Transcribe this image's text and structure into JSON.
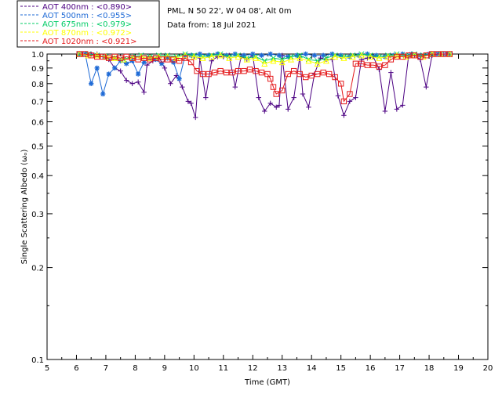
{
  "chart_data": {
    "type": "line",
    "site_title": "PML, N 50 22', W 04 08', Alt 0m",
    "date_text": "Data from: 18 Jul 2021",
    "xlabel": "Time (GMT)",
    "ylabel": "Single Scattering Albedo (ωₒ)",
    "xlim": [
      5,
      20
    ],
    "ylim": [
      0.1,
      1.0
    ],
    "yscale": "log",
    "x_ticks": [
      "5",
      "6",
      "7",
      "8",
      "9",
      "10",
      "11",
      "12",
      "13",
      "14",
      "15",
      "16",
      "17",
      "18",
      "19",
      "20"
    ],
    "y_ticks": [
      {
        "v": 0.1,
        "label": "0.1"
      },
      {
        "v": 0.2,
        "label": "0.2"
      },
      {
        "v": 0.3,
        "label": "0.3"
      },
      {
        "v": 0.4,
        "label": "0.4"
      },
      {
        "v": 0.5,
        "label": "0.5"
      },
      {
        "v": 0.6,
        "label": "0.6"
      },
      {
        "v": 0.7,
        "label": "0.7"
      },
      {
        "v": 0.8,
        "label": "0.8"
      },
      {
        "v": 0.9,
        "label": "0.9"
      },
      {
        "v": 1.0,
        "label": "1.0"
      }
    ],
    "legend_position": "top-left",
    "series": [
      {
        "name": "AOT  400nm : <0.890>",
        "color": "#4b0082",
        "marker": "plus",
        "x": [
          6.1,
          6.3,
          6.5,
          6.7,
          6.9,
          7.1,
          7.3,
          7.5,
          7.7,
          7.9,
          8.1,
          8.3,
          8.4,
          8.6,
          8.8,
          9.0,
          9.2,
          9.4,
          9.6,
          9.8,
          9.9,
          10.05,
          10.2,
          10.4,
          10.6,
          10.8,
          11.0,
          11.2,
          11.4,
          11.6,
          11.8,
          12.0,
          12.2,
          12.4,
          12.6,
          12.8,
          12.9,
          13.0,
          13.2,
          13.4,
          13.6,
          13.7,
          13.9,
          14.1,
          14.3,
          14.5,
          14.7,
          14.9,
          15.1,
          15.3,
          15.5,
          15.7,
          15.9,
          16.1,
          16.3,
          16.5,
          16.7,
          16.9,
          17.1,
          17.3,
          17.5,
          17.7,
          17.9,
          18.1,
          18.3,
          18.5,
          18.7
        ],
        "y": [
          1.0,
          1.0,
          1.0,
          1.0,
          0.98,
          0.96,
          0.9,
          0.88,
          0.82,
          0.8,
          0.81,
          0.75,
          0.92,
          0.95,
          0.98,
          0.9,
          0.8,
          0.85,
          0.78,
          0.7,
          0.69,
          0.62,
          0.97,
          0.72,
          0.95,
          0.98,
          0.98,
          0.99,
          0.78,
          0.98,
          0.96,
          0.99,
          0.72,
          0.65,
          0.69,
          0.67,
          0.68,
          0.99,
          0.66,
          0.72,
          0.98,
          0.74,
          0.67,
          0.86,
          0.97,
          0.96,
          0.96,
          0.73,
          0.63,
          0.7,
          0.72,
          0.96,
          0.97,
          0.98,
          0.89,
          0.65,
          0.87,
          0.66,
          0.68,
          0.98,
          0.99,
          0.96,
          0.78,
          0.99,
          1.0,
          1.0,
          1.0
        ]
      },
      {
        "name": "AOT  500nm : <0.955>",
        "color": "#1e6ad6",
        "marker": "asterisk",
        "x": [
          6.1,
          6.3,
          6.5,
          6.7,
          6.9,
          7.1,
          7.3,
          7.5,
          7.7,
          7.9,
          8.1,
          8.3,
          8.5,
          8.7,
          8.9,
          9.1,
          9.3,
          9.5,
          9.7,
          9.9,
          10.2,
          10.5,
          10.8,
          11.1,
          11.4,
          11.7,
          12.0,
          12.3,
          12.6,
          12.9,
          13.2,
          13.5,
          13.8,
          14.1,
          14.4,
          14.7,
          15.0,
          15.3,
          15.6,
          15.9,
          16.2,
          16.5,
          16.8,
          17.1,
          17.4,
          17.7,
          18.0,
          18.3,
          18.6
        ],
        "y": [
          1.0,
          1.0,
          0.8,
          0.9,
          0.74,
          0.86,
          0.9,
          0.95,
          0.93,
          0.95,
          0.86,
          0.94,
          0.97,
          0.96,
          0.93,
          0.97,
          0.94,
          0.83,
          0.99,
          0.99,
          1.0,
          0.99,
          1.0,
          0.99,
          1.0,
          0.99,
          1.0,
          0.99,
          1.0,
          0.99,
          0.98,
          0.99,
          1.0,
          0.99,
          0.99,
          1.0,
          0.99,
          0.98,
          0.99,
          1.0,
          0.99,
          0.98,
          0.99,
          1.0,
          1.0,
          0.99,
          1.0,
          1.0,
          1.0
        ]
      },
      {
        "name": "AOT  675nm : <0.979>",
        "color": "#00cc66",
        "marker": "x",
        "x": [
          6.1,
          6.4,
          6.7,
          7.0,
          7.3,
          7.6,
          7.9,
          8.2,
          8.5,
          8.8,
          9.1,
          9.4,
          9.7,
          10.0,
          10.3,
          10.6,
          10.9,
          11.2,
          11.5,
          11.8,
          12.1,
          12.4,
          12.7,
          13.0,
          13.3,
          13.6,
          13.9,
          14.2,
          14.5,
          14.8,
          15.1,
          15.4,
          15.7,
          16.0,
          16.3,
          16.6,
          16.9,
          17.2,
          17.5,
          17.8,
          18.1,
          18.4,
          18.7
        ],
        "y": [
          1.0,
          1.0,
          0.99,
          0.98,
          0.97,
          0.96,
          0.98,
          0.99,
          0.98,
          0.99,
          0.99,
          0.98,
          1.0,
          0.99,
          0.98,
          0.99,
          1.0,
          0.98,
          0.99,
          0.97,
          0.98,
          0.95,
          0.97,
          0.96,
          0.98,
          0.99,
          0.96,
          0.95,
          0.97,
          0.99,
          0.98,
          0.99,
          1.0,
          0.99,
          0.98,
          0.99,
          1.0,
          0.99,
          1.0,
          0.99,
          1.0,
          1.0,
          1.0
        ]
      },
      {
        "name": "AOT  870nm : <0.972>",
        "color": "#ffff00",
        "marker": "triangle",
        "x": [
          6.1,
          6.4,
          6.7,
          7.0,
          7.3,
          7.6,
          7.9,
          8.2,
          8.5,
          8.8,
          9.1,
          9.4,
          9.7,
          10.0,
          10.3,
          10.6,
          10.9,
          11.2,
          11.5,
          11.8,
          12.1,
          12.4,
          12.7,
          13.0,
          13.3,
          13.6,
          13.9,
          14.2,
          14.5,
          14.8,
          15.1,
          15.4,
          15.7,
          16.0,
          16.3,
          16.6,
          16.9,
          17.2,
          17.5,
          17.8,
          18.1,
          18.4,
          18.7
        ],
        "y": [
          1.0,
          0.99,
          0.99,
          0.98,
          0.97,
          0.96,
          0.97,
          0.98,
          0.97,
          0.98,
          0.98,
          0.97,
          0.99,
          0.98,
          0.97,
          0.98,
          0.99,
          0.97,
          0.98,
          0.96,
          0.97,
          0.93,
          0.95,
          0.94,
          0.96,
          0.97,
          0.95,
          0.93,
          0.95,
          0.98,
          0.97,
          0.98,
          0.99,
          0.98,
          0.97,
          0.98,
          0.99,
          0.98,
          0.99,
          0.98,
          1.0,
          1.0,
          1.0
        ]
      },
      {
        "name": "AOT 1020nm : <0.921>",
        "color": "#e41a1c",
        "marker": "square",
        "x": [
          6.1,
          6.3,
          6.5,
          6.7,
          6.9,
          7.1,
          7.3,
          7.5,
          7.7,
          7.9,
          8.1,
          8.3,
          8.5,
          8.7,
          8.9,
          9.1,
          9.3,
          9.5,
          9.7,
          9.9,
          10.1,
          10.3,
          10.5,
          10.7,
          10.9,
          11.1,
          11.3,
          11.5,
          11.7,
          11.9,
          12.1,
          12.3,
          12.5,
          12.6,
          12.7,
          12.8,
          13.0,
          13.2,
          13.4,
          13.6,
          13.8,
          14.0,
          14.2,
          14.4,
          14.6,
          14.8,
          15.0,
          15.1,
          15.3,
          15.5,
          15.7,
          15.9,
          16.1,
          16.3,
          16.5,
          16.7,
          16.9,
          17.1,
          17.3,
          17.5,
          17.7,
          17.9,
          18.1,
          18.3,
          18.5,
          18.7
        ],
        "y": [
          1.0,
          1.0,
          0.99,
          0.98,
          0.98,
          0.97,
          0.98,
          0.97,
          0.98,
          0.97,
          0.96,
          0.97,
          0.96,
          0.97,
          0.96,
          0.96,
          0.96,
          0.95,
          0.97,
          0.94,
          0.88,
          0.86,
          0.86,
          0.87,
          0.88,
          0.87,
          0.87,
          0.88,
          0.88,
          0.89,
          0.88,
          0.87,
          0.86,
          0.83,
          0.78,
          0.74,
          0.76,
          0.86,
          0.88,
          0.86,
          0.84,
          0.85,
          0.86,
          0.87,
          0.86,
          0.84,
          0.8,
          0.7,
          0.74,
          0.93,
          0.93,
          0.92,
          0.92,
          0.91,
          0.92,
          0.96,
          0.98,
          0.98,
          0.99,
          0.99,
          0.98,
          0.99,
          1.0,
          1.0,
          1.0,
          1.0
        ]
      }
    ]
  }
}
